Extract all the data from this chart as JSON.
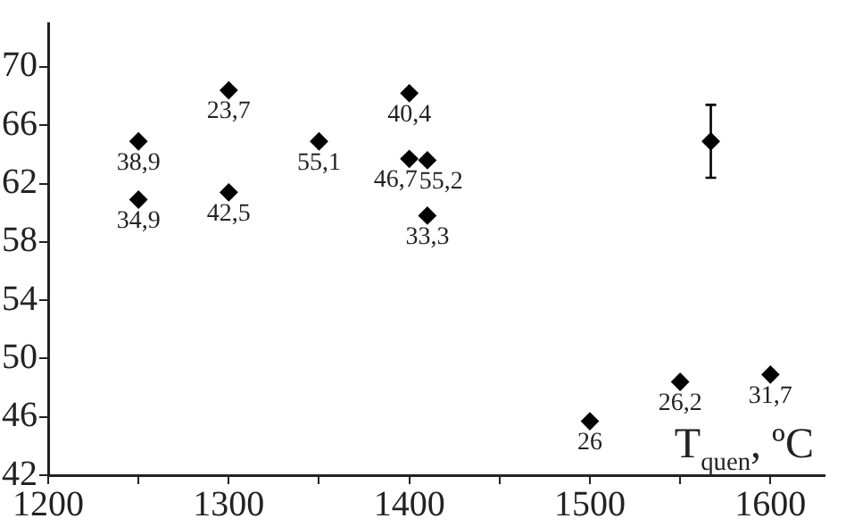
{
  "chart_data": {
    "type": "scatter",
    "xlabel": "T$_{quen}$, ºC",
    "marker": "diamond",
    "grid": false,
    "legend": false,
    "xlim": [
      1200,
      1630
    ],
    "xticks": [
      1200,
      {
        "value": 1250,
        "label": null
      },
      1300,
      {
        "value": 1350,
        "label": null
      },
      1400,
      {
        "value": 1450,
        "label": null
      },
      1500,
      {
        "value": 1550,
        "label": null
      },
      1600
    ],
    "ylim": [
      42,
      73
    ],
    "yticks": [
      42,
      46,
      50,
      54,
      58,
      62,
      66,
      70
    ],
    "series": [
      {
        "color": "#000000",
        "x": [
          1250,
          1250,
          1300,
          1300,
          1350,
          1400,
          1400,
          1410,
          1410,
          1567,
          1500,
          1550,
          1600
        ],
        "values": [
          64.9,
          60.9,
          68.4,
          61.4,
          64.9,
          68.2,
          63.7,
          63.6,
          59.8,
          64.9,
          45.7,
          48.4,
          48.9
        ],
        "errors": [
          null,
          null,
          null,
          null,
          null,
          null,
          null,
          null,
          null,
          2.5,
          null,
          null,
          null
        ]
      }
    ],
    "annotations": [
      {
        "text": "38,9",
        "x": 1250,
        "y": 64.9
      },
      {
        "text": "34,9",
        "x": 1250,
        "y": 60.9
      },
      {
        "text": "23,7",
        "x": 1300,
        "y": 68.4
      },
      {
        "text": "42,5",
        "x": 1300,
        "y": 61.4
      },
      {
        "text": "55,1",
        "x": 1350,
        "y": 64.9
      },
      {
        "text": "40,4",
        "x": 1400,
        "y": 68.2
      },
      {
        "text": "46,7",
        "x": 1400,
        "y": 63.7
      },
      {
        "text": "55,2",
        "x": 1410,
        "y": 63.6
      },
      {
        "text": "33,3",
        "x": 1410,
        "y": 59.8
      },
      {
        "text": "26",
        "x": 1500,
        "y": 45.7
      },
      {
        "text": "26,2",
        "x": 1550,
        "y": 48.4
      },
      {
        "text": "31,7",
        "x": 1600,
        "y": 48.9
      }
    ]
  }
}
